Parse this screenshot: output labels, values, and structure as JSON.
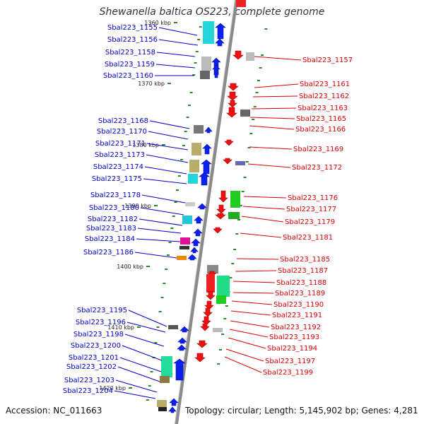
{
  "title": "Shewanella baltica OS223, complete genome",
  "footer": {
    "accession": "Accession: NC_011663",
    "topology": "Topology: circular; Length: 5,145,902 bp; Genes: 4,281"
  },
  "colors": {
    "forward_label": "#0000cc",
    "reverse_label": "#dd0000",
    "backbone": "#8a8a8a",
    "tick": "#2a8a2a"
  },
  "kbp_marks": [
    "1360 kbp",
    "1370 kbp",
    "1380 kbp",
    "1390 kbp",
    "1400 kbp",
    "1410 kbp",
    "1420 kbp"
  ],
  "forward_genes": [
    "Sbal223_1155",
    "Sbal223_1156",
    "Sbal223_1158",
    "Sbal223_1159",
    "Sbal223_1160",
    "Sbal223_1168",
    "Sbal223_1170",
    "Sbal223_1171",
    "Sbal223_1173",
    "Sbal223_1174",
    "Sbal223_1175",
    "Sbal223_1178",
    "Sbal223_1180",
    "Sbal223_1182",
    "Sbal223_1183",
    "Sbal223_1184",
    "Sbal223_1186",
    "Sbal223_1195",
    "Sbal223_1196",
    "Sbal223_1198",
    "Sbal223_1200",
    "Sbal223_1201",
    "Sbal223_1202",
    "Sbal223_1203",
    "Sbal223_1204"
  ],
  "reverse_genes": [
    "Sbal223_1157",
    "Sbal223_1161",
    "Sbal223_1162",
    "Sbal223_1163",
    "Sbal223_1165",
    "Sbal223_1166",
    "Sbal223_1169",
    "Sbal223_1172",
    "Sbal223_1176",
    "Sbal223_1177",
    "Sbal223_1179",
    "Sbal223_1181",
    "Sbal223_1185",
    "Sbal223_1187",
    "Sbal223_1188",
    "Sbal223_1189",
    "Sbal223_1190",
    "Sbal223_1191",
    "Sbal223_1192",
    "Sbal223_1193",
    "Sbal223_1194",
    "Sbal223_1197",
    "Sbal223_1199"
  ]
}
